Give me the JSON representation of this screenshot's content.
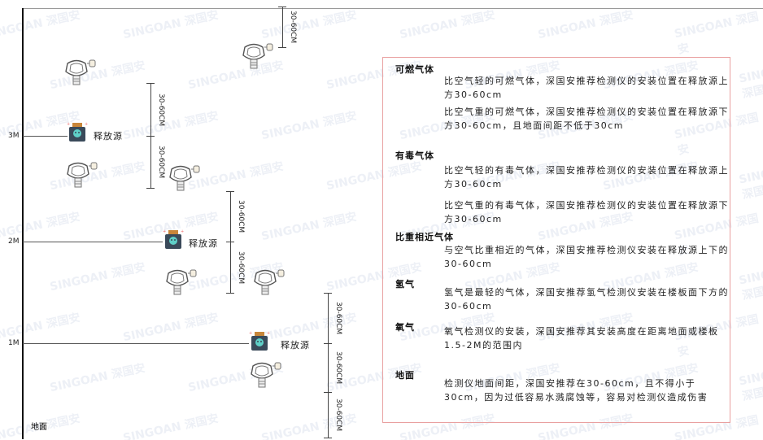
{
  "levels": {
    "m3": "3M",
    "m2": "2M",
    "m1": "1M",
    "ground": "地面"
  },
  "source_label": "释放源",
  "dimension_label": "30-60CM",
  "watermark": "SINGOAN 深国安",
  "colors": {
    "panel_border": "#e9a0a0",
    "source_body": "#3a4a5a",
    "source_cap": "#c8863a",
    "source_icon": "#5fd0c8"
  },
  "panel": {
    "sections": [
      {
        "title": "可燃气体",
        "paragraphs": [
          "比空气轻的可燃气体，深国安推荐检测仪的安装位置在释放源上方30-60cm",
          "比空气重的可燃气体，深国安推荐检测仪的安装位置在释放源下方30-60cm，且地面间距不低于30cm"
        ]
      },
      {
        "title": "有毒气体",
        "paragraphs": [
          "比空气轻的有毒气体，深国安推荐检测仪的安装位置在释放源上方30-60cm",
          "比空气重的有毒气体，深国安推荐检测仪的安装位置在释放源下方30-60cm"
        ]
      },
      {
        "title": "比重相近气体",
        "paragraphs": [
          "与空气比重相近的气体，深国安推荐检测仪安装在释放源上下的30-60cm"
        ]
      },
      {
        "title": "氢气",
        "paragraphs": [
          "氢气是最轻的气体，深国安推荐氢气检测仪安装在楼板面下方的30-60cm"
        ]
      },
      {
        "title": "氧气",
        "paragraphs": [
          "氧气检测仪的安装，深国安推荐其安装高度在距离地面或楼板1.5-2M的范围内"
        ]
      },
      {
        "title": "地面",
        "paragraphs": [
          "检测仪地面间距，深国安推荐在30-60cm，且不得小于30cm，因为过低容易水溅腐蚀等，容易对检测仪造成伤害"
        ]
      }
    ]
  }
}
